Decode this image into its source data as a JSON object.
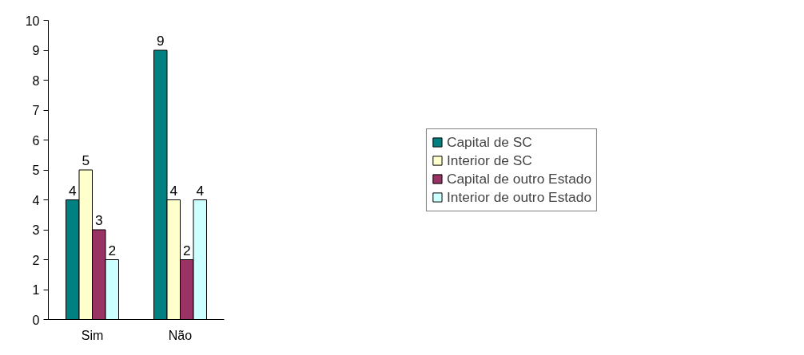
{
  "chart_data": {
    "type": "bar",
    "categories": [
      "Sim",
      "Não"
    ],
    "series": [
      {
        "name": "Capital de SC",
        "color": "#008080",
        "values": [
          4,
          9
        ]
      },
      {
        "name": "Interior de SC",
        "color": "#ffffcc",
        "values": [
          5,
          4
        ]
      },
      {
        "name": "Capital de outro Estado",
        "color": "#993366",
        "values": [
          3,
          2
        ]
      },
      {
        "name": "Interior de outro Estado",
        "color": "#ccffff",
        "values": [
          2,
          4
        ]
      }
    ],
    "ylim": [
      0,
      10
    ],
    "yticks": [
      0,
      1,
      2,
      3,
      4,
      5,
      6,
      7,
      8,
      9,
      10
    ],
    "grid": false,
    "legend": "right",
    "data_labels": true
  }
}
